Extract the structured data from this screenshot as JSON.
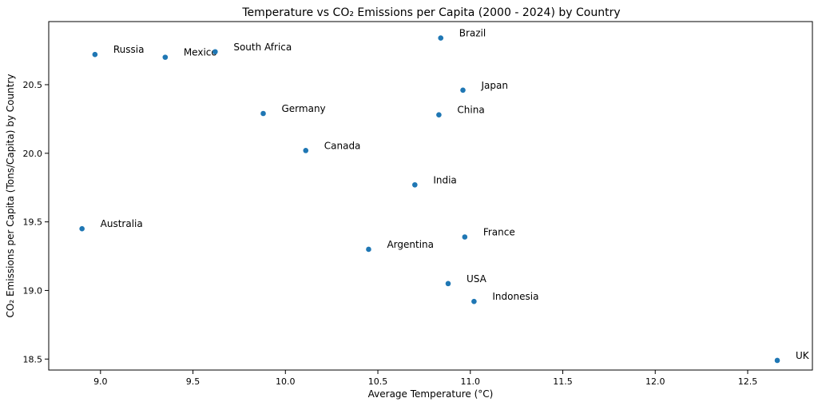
{
  "chart_data": {
    "type": "scatter",
    "title": "Temperature vs CO₂ Emissions per Capita (2000 - 2024) by Country",
    "xlabel": "Average Temperature (°C)",
    "ylabel": "CO₂ Emissions per Capita (Tons/Capita) by Country",
    "xlim": [
      8.72,
      12.85
    ],
    "ylim": [
      18.42,
      20.96
    ],
    "xticks": [
      9.0,
      9.5,
      10.0,
      10.5,
      11.0,
      11.5,
      12.0,
      12.5
    ],
    "xtick_labels": [
      "9.0",
      "9.5",
      "10.0",
      "10.5",
      "11.0",
      "11.5",
      "12.0",
      "12.5"
    ],
    "yticks": [
      18.5,
      19.0,
      19.5,
      20.0,
      20.5
    ],
    "ytick_labels": [
      "18.5",
      "19.0",
      "19.5",
      "20.0",
      "20.5"
    ],
    "grid": false,
    "marker_color": "#1f77b4",
    "points": [
      {
        "label": "Brazil",
        "x": 10.84,
        "y": 20.84
      },
      {
        "label": "Russia",
        "x": 8.97,
        "y": 20.72
      },
      {
        "label": "Mexico",
        "x": 9.35,
        "y": 20.7
      },
      {
        "label": "South Africa",
        "x": 9.62,
        "y": 20.74
      },
      {
        "label": "Japan",
        "x": 10.96,
        "y": 20.46
      },
      {
        "label": "Germany",
        "x": 9.88,
        "y": 20.29
      },
      {
        "label": "China",
        "x": 10.83,
        "y": 20.28
      },
      {
        "label": "Canada",
        "x": 10.11,
        "y": 20.02
      },
      {
        "label": "India",
        "x": 10.7,
        "y": 19.77
      },
      {
        "label": "Australia",
        "x": 8.9,
        "y": 19.45
      },
      {
        "label": "France",
        "x": 10.97,
        "y": 19.39
      },
      {
        "label": "Argentina",
        "x": 10.45,
        "y": 19.3
      },
      {
        "label": "USA",
        "x": 10.88,
        "y": 19.05
      },
      {
        "label": "Indonesia",
        "x": 11.02,
        "y": 18.92
      },
      {
        "label": "UK",
        "x": 12.66,
        "y": 18.49
      }
    ]
  }
}
